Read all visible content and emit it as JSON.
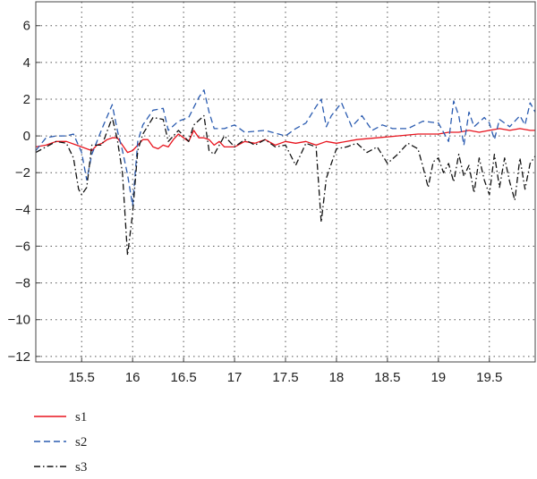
{
  "chart_data": {
    "type": "line",
    "xlim": [
      15.05,
      19.95
    ],
    "ylim": [
      -12.3,
      7.3
    ],
    "xticks": [
      "15.5",
      "16",
      "16.5",
      "17",
      "17.5",
      "18",
      "18.5",
      "19",
      "19.5"
    ],
    "xtick_values": [
      15.5,
      16,
      16.5,
      17,
      17.5,
      18,
      18.5,
      19,
      19.5
    ],
    "yticks": [
      "6",
      "4",
      "2",
      "0",
      "−2",
      "−4",
      "−6",
      "−8",
      "−10",
      "−12"
    ],
    "ytick_values": [
      6,
      4,
      2,
      0,
      -2,
      -4,
      -6,
      -8,
      -10,
      -12
    ],
    "grid": true,
    "legend_position": "below-left",
    "series": [
      {
        "name": "s1",
        "color": "#e8141e",
        "dash": "solid",
        "x": [
          15.05,
          15.15,
          15.25,
          15.35,
          15.45,
          15.5,
          15.55,
          15.6,
          15.65,
          15.7,
          15.75,
          15.8,
          15.85,
          15.9,
          15.95,
          16.0,
          16.05,
          16.1,
          16.15,
          16.2,
          16.25,
          16.3,
          16.35,
          16.4,
          16.45,
          16.5,
          16.55,
          16.6,
          16.65,
          16.7,
          16.75,
          16.8,
          16.85,
          16.9,
          16.95,
          17.0,
          17.1,
          17.2,
          17.3,
          17.4,
          17.5,
          17.6,
          17.7,
          17.8,
          17.9,
          18.0,
          18.2,
          18.4,
          18.6,
          18.8,
          19.0,
          19.1,
          19.2,
          19.3,
          19.4,
          19.5,
          19.6,
          19.7,
          19.8,
          19.9,
          19.95
        ],
        "y": [
          -0.6,
          -0.5,
          -0.3,
          -0.3,
          -0.5,
          -0.6,
          -0.7,
          -0.8,
          -0.5,
          -0.4,
          -0.2,
          -0.1,
          -0.1,
          -0.5,
          -0.9,
          -0.8,
          -0.5,
          -0.2,
          -0.2,
          -0.6,
          -0.7,
          -0.5,
          -0.6,
          -0.2,
          0.1,
          -0.1,
          -0.3,
          0.3,
          -0.1,
          -0.1,
          -0.2,
          -0.5,
          -0.3,
          -0.6,
          -0.6,
          -0.6,
          -0.3,
          -0.4,
          -0.2,
          -0.5,
          -0.3,
          -0.4,
          -0.3,
          -0.5,
          -0.3,
          -0.4,
          -0.2,
          -0.1,
          0.0,
          0.1,
          0.1,
          0.2,
          0.2,
          0.3,
          0.2,
          0.3,
          0.4,
          0.3,
          0.4,
          0.3,
          0.3
        ]
      },
      {
        "name": "s2",
        "color": "#2a5bb0",
        "dash": "dashed",
        "x": [
          15.05,
          15.15,
          15.25,
          15.35,
          15.42,
          15.5,
          15.55,
          15.6,
          15.7,
          15.8,
          15.85,
          15.9,
          15.95,
          16.0,
          16.05,
          16.1,
          16.2,
          16.3,
          16.35,
          16.45,
          16.55,
          16.65,
          16.7,
          16.75,
          16.8,
          16.9,
          17.0,
          17.1,
          17.3,
          17.5,
          17.6,
          17.7,
          17.8,
          17.85,
          17.9,
          17.95,
          18.05,
          18.15,
          18.25,
          18.35,
          18.45,
          18.55,
          18.7,
          18.85,
          19.0,
          19.1,
          19.15,
          19.2,
          19.25,
          19.3,
          19.35,
          19.45,
          19.5,
          19.55,
          19.6,
          19.7,
          19.8,
          19.85,
          19.9,
          19.95
        ],
        "y": [
          -0.8,
          -0.1,
          0.0,
          0.0,
          0.1,
          -0.9,
          -2.4,
          -1.0,
          0.4,
          1.7,
          0.3,
          -0.8,
          -2.1,
          -3.8,
          -0.3,
          0.6,
          1.4,
          1.5,
          0.3,
          0.8,
          1.0,
          2.1,
          2.5,
          1.3,
          0.4,
          0.4,
          0.6,
          0.2,
          0.3,
          0.0,
          0.4,
          0.7,
          1.6,
          2.0,
          0.5,
          1.1,
          1.8,
          0.5,
          1.1,
          0.3,
          0.6,
          0.4,
          0.4,
          0.8,
          0.7,
          -0.3,
          1.9,
          1.1,
          -0.5,
          1.3,
          0.5,
          1.0,
          0.7,
          -0.2,
          0.9,
          0.5,
          1.1,
          0.6,
          1.8,
          1.3
        ]
      },
      {
        "name": "s3",
        "color": "#111111",
        "dash": "dashdot",
        "x": [
          15.05,
          15.15,
          15.25,
          15.35,
          15.42,
          15.47,
          15.5,
          15.55,
          15.6,
          15.7,
          15.8,
          15.85,
          15.9,
          15.95,
          16.0,
          16.05,
          16.1,
          16.2,
          16.3,
          16.35,
          16.45,
          16.55,
          16.6,
          16.7,
          16.75,
          16.8,
          16.9,
          17.0,
          17.1,
          17.2,
          17.3,
          17.4,
          17.5,
          17.6,
          17.7,
          17.8,
          17.85,
          17.9,
          18.0,
          18.1,
          18.2,
          18.3,
          18.4,
          18.5,
          18.6,
          18.7,
          18.8,
          18.85,
          18.9,
          18.95,
          19.0,
          19.05,
          19.1,
          19.15,
          19.2,
          19.25,
          19.3,
          19.35,
          19.4,
          19.45,
          19.5,
          19.55,
          19.6,
          19.65,
          19.7,
          19.75,
          19.8,
          19.85,
          19.9,
          19.95
        ],
        "y": [
          -0.9,
          -0.6,
          -0.3,
          -0.4,
          -1.2,
          -2.9,
          -3.2,
          -2.8,
          -0.5,
          -0.5,
          1.0,
          -0.2,
          -2.0,
          -6.5,
          -4.2,
          -0.8,
          0.1,
          1.0,
          0.9,
          -0.3,
          0.3,
          -0.3,
          0.6,
          1.1,
          -0.8,
          -1.0,
          0.0,
          -0.6,
          -0.2,
          -0.5,
          -0.2,
          -0.6,
          -0.5,
          -1.6,
          -0.4,
          -0.6,
          -4.7,
          -2.3,
          -0.7,
          -0.6,
          -0.4,
          -0.9,
          -0.6,
          -1.5,
          -1.0,
          -0.4,
          -0.7,
          -1.7,
          -2.8,
          -1.4,
          -1.2,
          -2.0,
          -1.5,
          -2.5,
          -1.0,
          -2.2,
          -1.6,
          -3.1,
          -1.2,
          -2.4,
          -3.2,
          -1.0,
          -2.8,
          -1.2,
          -2.5,
          -3.5,
          -1.2,
          -2.9,
          -1.5,
          -1.1
        ]
      }
    ]
  }
}
